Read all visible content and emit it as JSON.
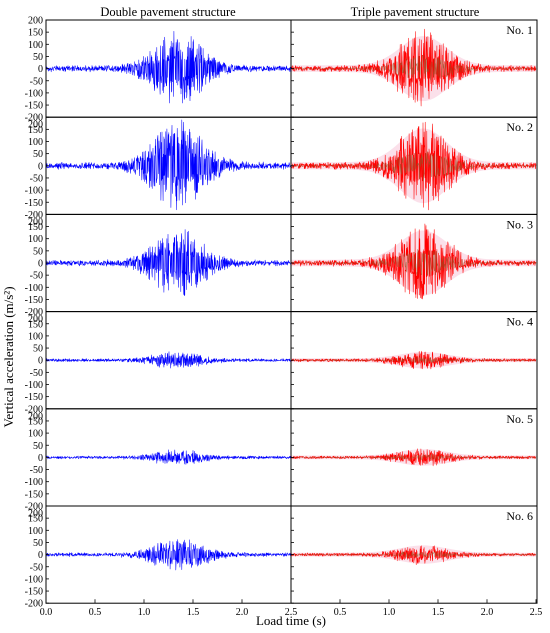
{
  "chart_data": {
    "type": "line",
    "xlabel": "Load time (s)",
    "ylabel": "Vertical acceleration (m/s²)",
    "columns": [
      {
        "title": "Double pavement structure",
        "color": "#0000ff"
      },
      {
        "title": "Triple pavement structure",
        "color": "#ff0000"
      }
    ],
    "rows": [
      {
        "label": "No. 1",
        "double_peak": 155,
        "triple_peak": 160
      },
      {
        "label": "No. 2",
        "double_peak": 190,
        "triple_peak": 185
      },
      {
        "label": "No. 3",
        "double_peak": 145,
        "triple_peak": 160
      },
      {
        "label": "No. 4",
        "double_peak": 35,
        "triple_peak": 35
      },
      {
        "label": "No. 5",
        "double_peak": 30,
        "triple_peak": 35
      },
      {
        "label": "No. 6",
        "double_peak": 70,
        "triple_peak": 40
      }
    ],
    "x_range": [
      0,
      2.5
    ],
    "y_range": [
      -200,
      200
    ],
    "x_ticks": [
      "0.0",
      "0.5",
      "1.0",
      "1.5",
      "2.0",
      "2.5"
    ],
    "y_ticks": [
      "200",
      "150",
      "100",
      "50",
      "0",
      "-50",
      "-100",
      "-150",
      "-200"
    ],
    "grid": false
  }
}
